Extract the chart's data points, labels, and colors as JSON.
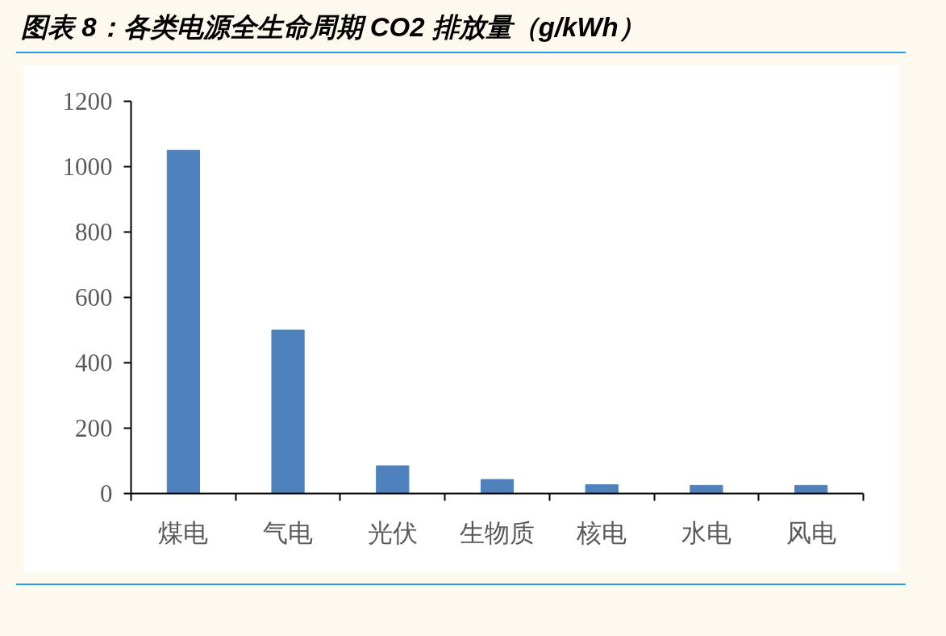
{
  "chart_data": {
    "type": "bar",
    "title": "图表 8：各类电源全生命周期 CO2 排放量（g/kWh）",
    "categories": [
      "煤电",
      "气电",
      "光伏",
      "生物质",
      "核电",
      "水电",
      "风电"
    ],
    "values": [
      1050,
      500,
      85,
      43,
      27,
      25,
      25
    ],
    "color": "#4f81bd",
    "ylim": [
      0,
      1200
    ],
    "yticks": [
      0,
      200,
      400,
      600,
      800,
      1000,
      1200
    ]
  }
}
